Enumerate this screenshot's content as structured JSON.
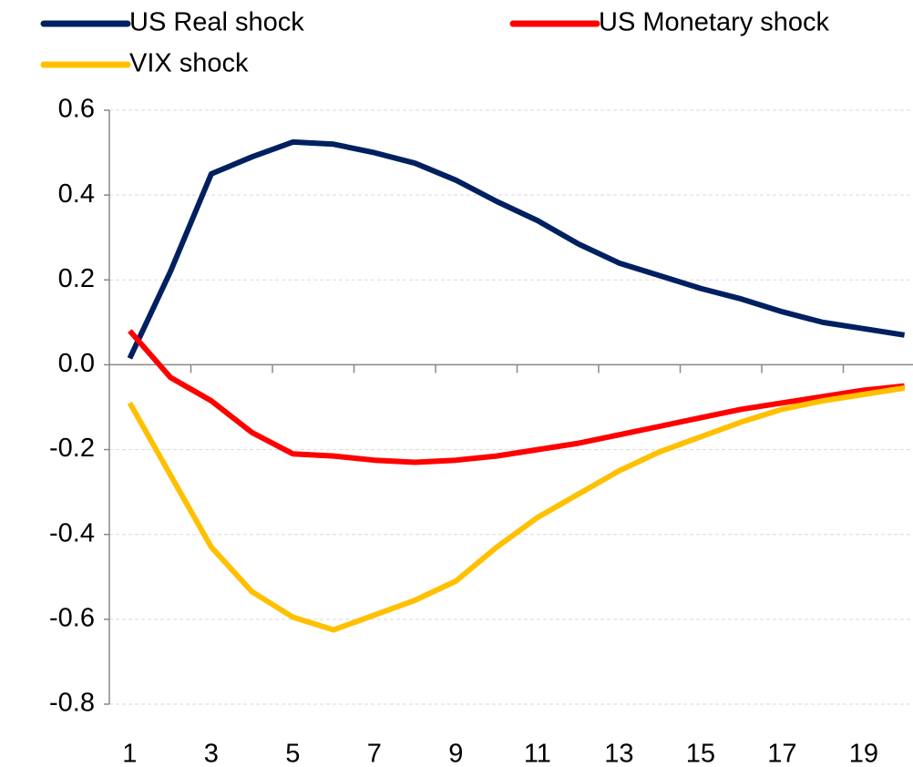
{
  "chart_data": {
    "type": "line",
    "categories": [
      1,
      null,
      3,
      null,
      5,
      null,
      7,
      null,
      9,
      null,
      11,
      null,
      13,
      null,
      15,
      null,
      17,
      null,
      19,
      null
    ],
    "series": [
      {
        "name": "US Real shock",
        "color": "#002060",
        "values": [
          0.015,
          0.22,
          0.45,
          0.49,
          0.525,
          0.52,
          0.5,
          0.475,
          0.435,
          0.385,
          0.34,
          0.285,
          0.24,
          0.21,
          0.18,
          0.155,
          0.125,
          0.1,
          0.085,
          0.07
        ]
      },
      {
        "name": "US Monetary shock",
        "color": "#ff0000",
        "values": [
          0.08,
          -0.03,
          -0.085,
          -0.16,
          -0.21,
          -0.215,
          -0.225,
          -0.23,
          -0.225,
          -0.215,
          -0.2,
          -0.185,
          -0.165,
          -0.145,
          -0.125,
          -0.105,
          -0.09,
          -0.075,
          -0.06,
          -0.05
        ]
      },
      {
        "name": "VIX shock",
        "color": "#ffc000",
        "values": [
          -0.09,
          -0.26,
          -0.43,
          -0.535,
          -0.595,
          -0.625,
          -0.59,
          -0.555,
          -0.51,
          -0.43,
          -0.36,
          -0.305,
          -0.25,
          -0.205,
          -0.17,
          -0.135,
          -0.105,
          -0.085,
          -0.07,
          -0.055
        ]
      }
    ],
    "ylim": [
      -0.8,
      0.6
    ],
    "yticks": [
      -0.8,
      -0.6,
      -0.4,
      -0.2,
      {
        "value": 0,
        "label": "0.0"
      },
      0.2,
      0.4,
      0.6
    ],
    "grid": true
  }
}
